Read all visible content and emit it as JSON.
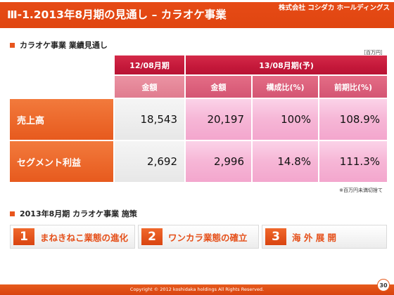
{
  "header": {
    "title": "Ⅲ-1.2013年8月期の見通し – カラオケ事業",
    "company": "株式会社 コシダカ ホールディングス"
  },
  "section1": {
    "title": "カラオケ事業 業績見通し",
    "unit": "［百万円］"
  },
  "table": {
    "period_actual": "12/08月期",
    "period_forecast": "13/08月期(予)",
    "col_amount_actual": "金額",
    "col_amount_forecast": "金額",
    "col_ratio": "構成比(%)",
    "col_yoy": "前期比(%)",
    "rows": [
      {
        "label": "売上高",
        "actual": "18,543",
        "forecast": "20,197",
        "ratio": "100%",
        "yoy": "108.9%"
      },
      {
        "label": "セグメント利益",
        "actual": "2,692",
        "forecast": "2,996",
        "ratio": "14.8%",
        "yoy": "111.3%"
      }
    ],
    "note": "※百万円未満切捨て"
  },
  "section2": {
    "title": "2013年8月期 カラオケ事業 施策"
  },
  "policies": [
    {
      "num": "1",
      "text": "まねきねこ業態の進化"
    },
    {
      "num": "2",
      "text": "ワンカラ業態の確立"
    },
    {
      "num": "3",
      "text": "海 外 展 開"
    }
  ],
  "footer": {
    "copyright": "Copyright © 2012 koshidaka holdings All Rights Reserved.",
    "page": "30"
  },
  "colors": {
    "accent_orange": "#e64b16",
    "header_red": "#c4183a",
    "pink_cell": "#f6b6d6"
  }
}
